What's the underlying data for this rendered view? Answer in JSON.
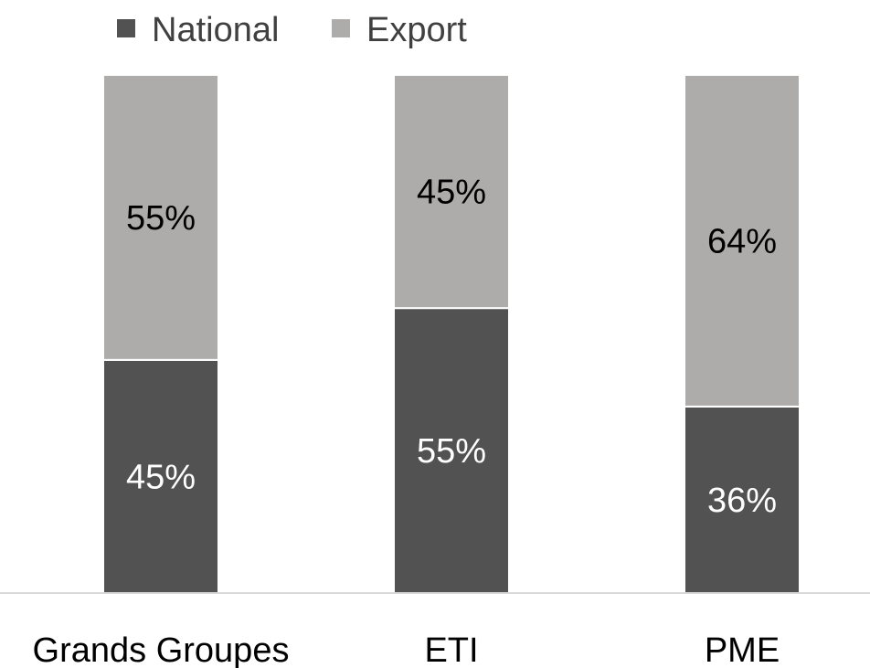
{
  "chart_data": {
    "type": "bar",
    "stacked": true,
    "categories": [
      "Grands Groupes",
      "ETI",
      "PME"
    ],
    "series": [
      {
        "name": "National",
        "values": [
          45,
          55,
          36
        ],
        "labels": [
          "45%",
          "55%",
          "36%"
        ],
        "color": "#525252",
        "label_color": "#ffffff"
      },
      {
        "name": "Export",
        "values": [
          55,
          45,
          64
        ],
        "labels": [
          "55%",
          "45%",
          "64%"
        ],
        "color": "#aeabab",
        "label_color": "#000000"
      }
    ],
    "ylim": [
      0,
      100
    ],
    "unit": "%",
    "legend_position": "top-left",
    "grid": false,
    "axis_color": "#d9d9d9"
  }
}
